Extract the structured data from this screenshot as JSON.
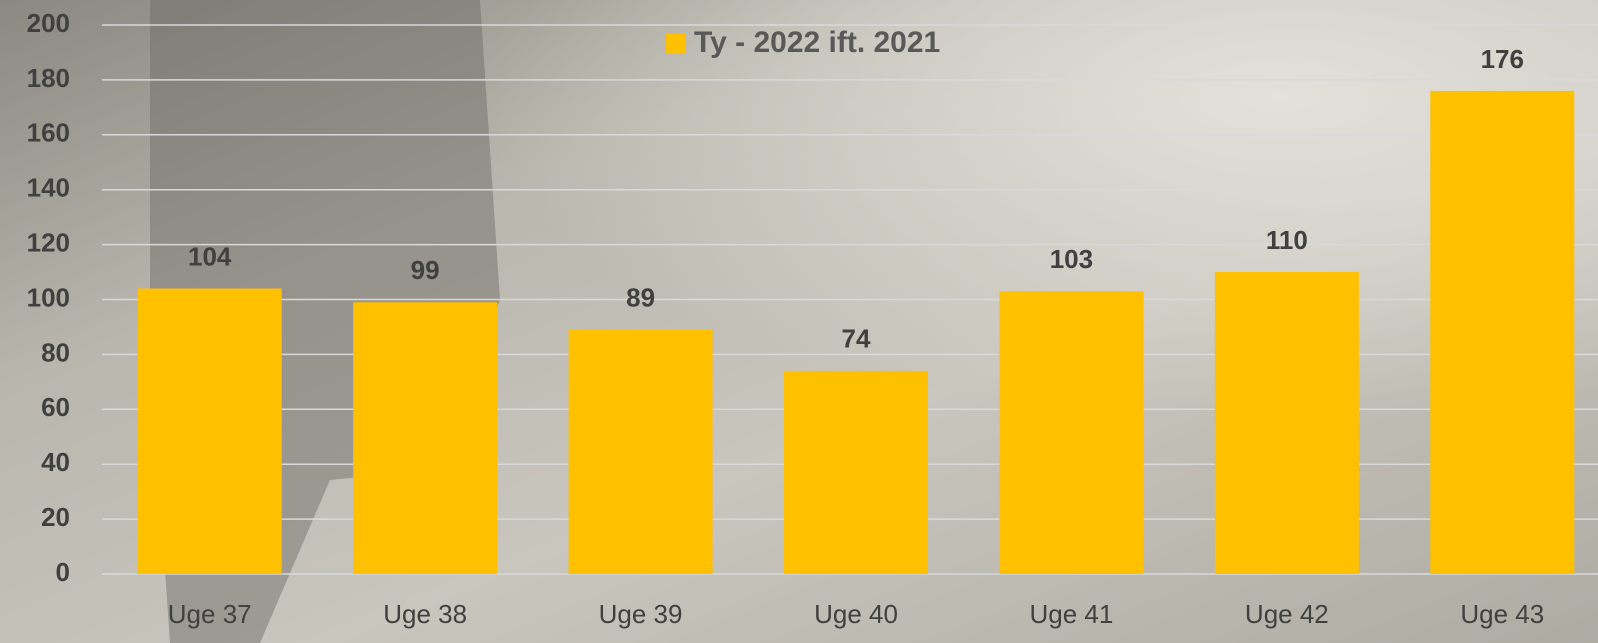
{
  "chart_data": {
    "type": "bar",
    "categories": [
      "Uge 37",
      "Uge 38",
      "Uge 39",
      "Uge 40",
      "Uge 41",
      "Uge 42",
      "Uge 43"
    ],
    "series": [
      {
        "name": "Ty - 2022 ift. 2021",
        "color": "#ffc000",
        "values": [
          104,
          99,
          89,
          74,
          103,
          110,
          176
        ]
      }
    ],
    "ylim": [
      0,
      200
    ],
    "yticks": [
      0,
      20,
      40,
      60,
      80,
      100,
      120,
      140,
      160,
      180,
      200
    ],
    "grid": true,
    "legend": "top"
  }
}
